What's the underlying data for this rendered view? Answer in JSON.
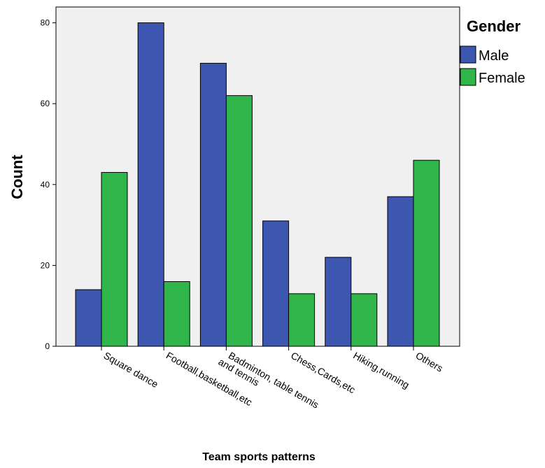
{
  "chart_data": {
    "type": "bar",
    "title": "",
    "xlabel": "Team sports patterns",
    "ylabel": "Count",
    "ylim": [
      0,
      85
    ],
    "yticks": [
      0,
      20,
      40,
      60,
      80
    ],
    "grid": false,
    "legend": {
      "title": "Gender",
      "placement": "top-right-outside"
    },
    "categories": [
      [
        "Square dance"
      ],
      [
        "Football,basketball,etc"
      ],
      [
        "Badminton, table tennis",
        "and tennis"
      ],
      [
        "Chess,Cards,etc"
      ],
      [
        "Hiking,running"
      ],
      [
        "Others"
      ]
    ],
    "series": [
      {
        "name": "Male",
        "color": "#3d56b0",
        "values": [
          14,
          80,
          70,
          31,
          22,
          37
        ]
      },
      {
        "name": "Female",
        "color": "#2fb54a",
        "values": [
          43,
          16,
          62,
          13,
          13,
          46
        ]
      }
    ],
    "plot_background": "#f0f0f0"
  }
}
